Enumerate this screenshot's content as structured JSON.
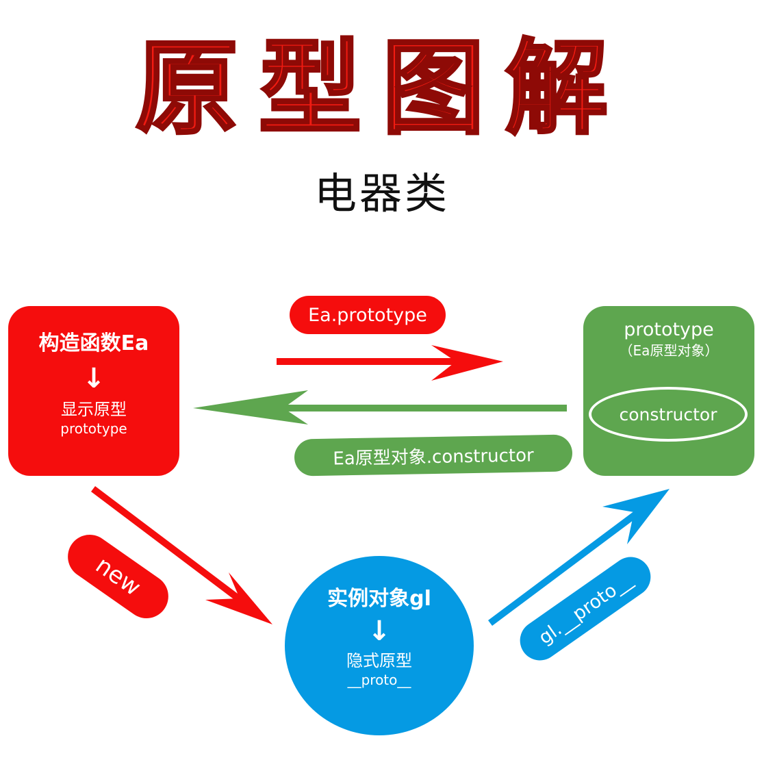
{
  "header": {
    "title": "原型图解",
    "subtitle": "电器类"
  },
  "nodes": {
    "constructor_box": {
      "title": "构造函数Ea",
      "arrow": "↓",
      "label": "显示原型",
      "sublabel": "prototype"
    },
    "prototype_box": {
      "title": "prototype",
      "subtitle": "（Ea原型对象）",
      "inner_label": "constructor"
    },
    "instance_circle": {
      "title": "实例对象gl",
      "arrow": "↓",
      "label": "隐式原型",
      "sublabel": "__proto__"
    }
  },
  "edges": {
    "ctor_to_proto": "Ea.prototype",
    "proto_to_ctor": "Ea原型对象.constructor",
    "ctor_to_inst": "new",
    "inst_to_proto": "gl.__proto__"
  },
  "colors": {
    "red": "#f50d0d",
    "green": "#5ea64f",
    "blue": "#059ae3",
    "title": "#f21b12"
  }
}
